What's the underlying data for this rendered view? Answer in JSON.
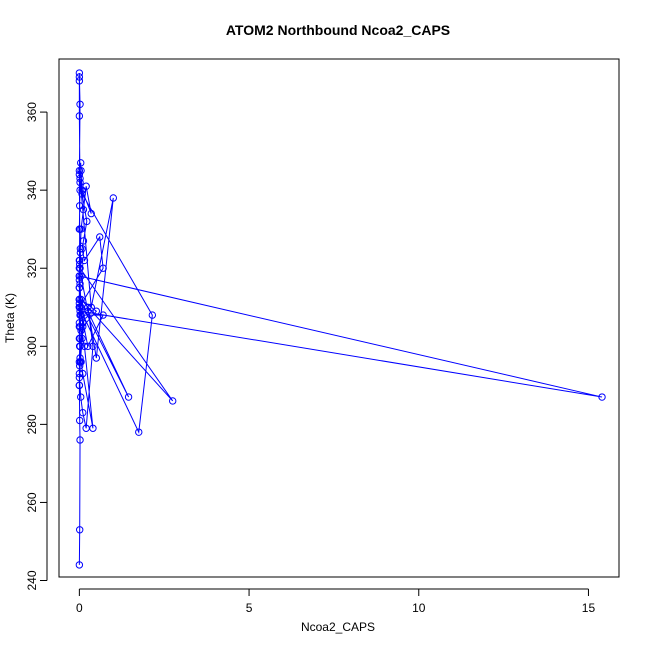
{
  "chart_data": {
    "type": "line",
    "title": "ATOM2 Northbound Ncoa2_CAPS",
    "xlabel": "Ncoa2_CAPS",
    "ylabel": "Theta (K)",
    "xlim": [
      -0.6,
      15.9
    ],
    "ylim": [
      240.9,
      373.6
    ],
    "x_ticks": [
      0,
      5,
      10,
      15
    ],
    "y_ticks": [
      240,
      260,
      280,
      300,
      320,
      340,
      360
    ],
    "grid": false,
    "legend": "none",
    "marker": "open-circle",
    "color": "#0000ff",
    "series": [
      {
        "x": [
          0.0,
          0.01,
          0.02,
          0.01,
          0.0,
          0.01,
          0.02,
          0.02,
          0.01,
          0.0,
          0.0,
          0.01,
          0.03,
          0.05,
          0.12,
          0.2,
          0.35,
          0.08,
          0.02,
          0.05,
          0.04,
          0.08,
          0.22,
          0.12,
          0.08,
          0.15,
          0.6,
          0.7,
          0.0,
          0.02,
          0.01,
          0.0,
          0.0,
          0.04,
          0.1,
          0.2,
          0.4,
          0.25,
          0.5,
          1.0,
          0.35,
          0.0,
          0.02,
          0.01,
          0.0,
          0.03,
          0.05,
          0.25,
          1.45,
          0.0,
          0.02,
          0.05,
          0.1,
          0.4,
          0.15,
          0.05,
          0.02,
          0.0,
          0.0,
          0.01,
          0.02,
          0.05,
          0.0,
          0.0,
          0.01,
          0.02,
          0.0,
          0.0,
          0.03,
          0.08,
          0.15,
          0.7,
          0.25,
          0.0,
          0.0,
          0.05,
          0.1,
          0.02,
          15.4,
          0.0,
          0.0,
          0.02,
          2.75,
          0.05,
          0.5,
          0.1,
          0.02,
          0.0,
          1.75,
          2.15,
          0.02,
          0.0,
          0.0,
          0.0,
          0.0,
          0.02,
          0.0,
          0.01,
          0.0,
          0.0,
          0.0
        ],
        "y": [
          244,
          253,
          276,
          281,
          290,
          295,
          300,
          305,
          310,
          315,
          318,
          322,
          325,
          330,
          335,
          341,
          334,
          340,
          343,
          345,
          347,
          339,
          332,
          327,
          325,
          322,
          328,
          320,
          310,
          305,
          300,
          296,
          292,
          287,
          283,
          279,
          300,
          310,
          297,
          338,
          310,
          345,
          342,
          336,
          330,
          324,
          318,
          309,
          287,
          312,
          302,
          296,
          293,
          279,
          300,
          304,
          308,
          312,
          317,
          321,
          316,
          310,
          306,
          302,
          300,
          297,
          293,
          290,
          296,
          302,
          308,
          308,
          300,
          311,
          315,
          308,
          306,
          309,
          287,
          318,
          322,
          320,
          286,
          312,
          309,
          305,
          300,
          310,
          278,
          308,
          340,
          359,
          368,
          370,
          369,
          362,
          344,
          330,
          320,
          312,
          305
        ]
      }
    ]
  }
}
